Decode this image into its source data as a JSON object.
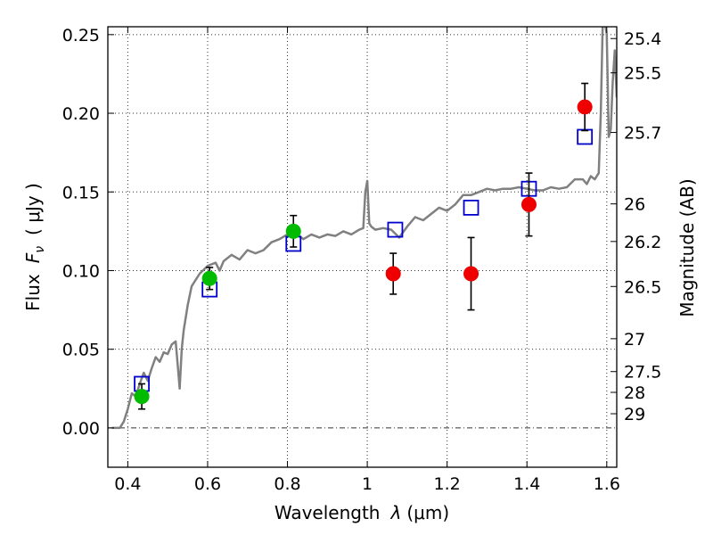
{
  "chart_data": {
    "type": "scatter",
    "xlabel": "Wavelength",
    "xlabel_symbol": "λ",
    "xlabel_unit": "(μm)",
    "ylabel": "Flux",
    "ylabel_symbol": "F",
    "ylabel_subscript": "ν",
    "ylabel_unit": "( μJy )",
    "y2label": "Magnitude (AB)",
    "xlim": [
      0.35,
      1.625
    ],
    "ylim": [
      -0.025,
      0.255
    ],
    "x_ticks": [
      0.4,
      0.6,
      0.8,
      1.0,
      1.2,
      1.4,
      1.6
    ],
    "x_tick_labels": [
      "0.4",
      "0.6",
      "0.8",
      "1",
      "1.2",
      "1.4",
      "1.6"
    ],
    "y_ticks": [
      0.0,
      0.05,
      0.1,
      0.15,
      0.2,
      0.25
    ],
    "y_tick_labels": [
      "0.00",
      "0.05",
      "0.10",
      "0.15",
      "0.20",
      "0.25"
    ],
    "magnitude_ticks": [
      {
        "label": "25.4",
        "flux": 0.2475
      },
      {
        "label": "25.5",
        "flux": 0.2257
      },
      {
        "label": "25.7",
        "flux": 0.1878
      },
      {
        "label": "26",
        "flux": 0.1424
      },
      {
        "label": "26.2",
        "flux": 0.1185
      },
      {
        "label": "26.5",
        "flux": 0.0899
      },
      {
        "label": "27",
        "flux": 0.0567
      },
      {
        "label": "27.5",
        "flux": 0.0358
      },
      {
        "label": "28",
        "flux": 0.0226
      },
      {
        "label": "29",
        "flux": 0.009
      }
    ],
    "grid": true,
    "zero_line": true,
    "colors": {
      "model_line": "#808080",
      "green": "#00bb00",
      "red": "#ee0000",
      "squares": "#0000cc",
      "errorbars": "#000000"
    },
    "series": [
      {
        "marker": "line",
        "color": "#808080",
        "points": [
          [
            0.36,
            0.0
          ],
          [
            0.38,
            0.0
          ],
          [
            0.39,
            0.004
          ],
          [
            0.4,
            0.012
          ],
          [
            0.41,
            0.022
          ],
          [
            0.42,
            0.02
          ],
          [
            0.43,
            0.028
          ],
          [
            0.44,
            0.035
          ],
          [
            0.45,
            0.03
          ],
          [
            0.46,
            0.038
          ],
          [
            0.47,
            0.045
          ],
          [
            0.48,
            0.042
          ],
          [
            0.49,
            0.048
          ],
          [
            0.5,
            0.047
          ],
          [
            0.51,
            0.053
          ],
          [
            0.52,
            0.055
          ],
          [
            0.525,
            0.04
          ],
          [
            0.53,
            0.025
          ],
          [
            0.535,
            0.05
          ],
          [
            0.54,
            0.062
          ],
          [
            0.55,
            0.078
          ],
          [
            0.56,
            0.09
          ],
          [
            0.58,
            0.098
          ],
          [
            0.6,
            0.103
          ],
          [
            0.62,
            0.105
          ],
          [
            0.63,
            0.1
          ],
          [
            0.64,
            0.106
          ],
          [
            0.66,
            0.11
          ],
          [
            0.68,
            0.107
          ],
          [
            0.7,
            0.113
          ],
          [
            0.72,
            0.111
          ],
          [
            0.74,
            0.113
          ],
          [
            0.76,
            0.118
          ],
          [
            0.78,
            0.12
          ],
          [
            0.8,
            0.123
          ],
          [
            0.82,
            0.124
          ],
          [
            0.84,
            0.12
          ],
          [
            0.86,
            0.123
          ],
          [
            0.88,
            0.121
          ],
          [
            0.9,
            0.123
          ],
          [
            0.92,
            0.122
          ],
          [
            0.94,
            0.125
          ],
          [
            0.96,
            0.123
          ],
          [
            0.98,
            0.126
          ],
          [
            0.99,
            0.127
          ],
          [
            0.995,
            0.15
          ],
          [
            1.0,
            0.157
          ],
          [
            1.005,
            0.13
          ],
          [
            1.01,
            0.128
          ],
          [
            1.02,
            0.126
          ],
          [
            1.04,
            0.127
          ],
          [
            1.06,
            0.126
          ],
          [
            1.08,
            0.121
          ],
          [
            1.1,
            0.128
          ],
          [
            1.12,
            0.134
          ],
          [
            1.14,
            0.132
          ],
          [
            1.16,
            0.136
          ],
          [
            1.18,
            0.14
          ],
          [
            1.2,
            0.138
          ],
          [
            1.22,
            0.142
          ],
          [
            1.24,
            0.148
          ],
          [
            1.26,
            0.148
          ],
          [
            1.28,
            0.15
          ],
          [
            1.3,
            0.152
          ],
          [
            1.32,
            0.151
          ],
          [
            1.34,
            0.152
          ],
          [
            1.36,
            0.152
          ],
          [
            1.38,
            0.153
          ],
          [
            1.4,
            0.152
          ],
          [
            1.42,
            0.151
          ],
          [
            1.44,
            0.151
          ],
          [
            1.46,
            0.153
          ],
          [
            1.48,
            0.152
          ],
          [
            1.5,
            0.153
          ],
          [
            1.52,
            0.158
          ],
          [
            1.54,
            0.158
          ],
          [
            1.55,
            0.155
          ],
          [
            1.56,
            0.16
          ],
          [
            1.57,
            0.158
          ],
          [
            1.58,
            0.162
          ],
          [
            1.585,
            0.2
          ],
          [
            1.59,
            0.258
          ],
          [
            1.595,
            0.258
          ],
          [
            1.6,
            0.25
          ],
          [
            1.605,
            0.185
          ],
          [
            1.61,
            0.19
          ],
          [
            1.615,
            0.22
          ],
          [
            1.62,
            0.24
          ],
          [
            1.625,
            0.21
          ]
        ]
      },
      {
        "marker": "open-square",
        "color": "#0000cc",
        "x": [
          0.435,
          0.605,
          0.815,
          1.07,
          1.26,
          1.405,
          1.545
        ],
        "y": [
          0.028,
          0.088,
          0.117,
          0.126,
          0.14,
          0.152,
          0.185
        ]
      },
      {
        "marker": "filled-circle",
        "color": "#00bb00",
        "x": [
          0.435,
          0.605,
          0.815
        ],
        "y": [
          0.02,
          0.095,
          0.125
        ],
        "err": [
          0.008,
          0.007,
          0.01
        ]
      },
      {
        "marker": "filled-circle",
        "color": "#ee0000",
        "x": [
          1.065,
          1.26,
          1.405,
          1.545
        ],
        "y": [
          0.098,
          0.098,
          0.142,
          0.204
        ],
        "err": [
          0.013,
          0.023,
          0.02,
          0.015
        ]
      }
    ]
  }
}
